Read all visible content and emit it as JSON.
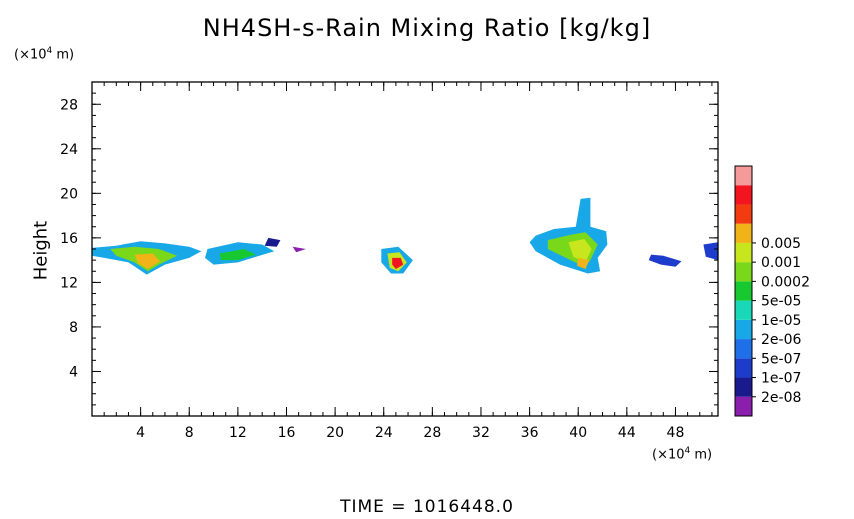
{
  "chart_data": {
    "type": "heatmap",
    "title": "NH4SH-s-Rain Mixing Ratio [kg/kg]",
    "ylabel": "Height",
    "x_unit": "(×10",
    "x_unit_exp": "4",
    "x_unit_tail": " m)",
    "y_unit": "(×10",
    "y_unit_exp": "4",
    "y_unit_tail": " m)",
    "xlim": [
      0,
      51.5
    ],
    "ylim": [
      0,
      30
    ],
    "x_ticks": [
      4,
      8,
      12,
      16,
      20,
      24,
      28,
      32,
      36,
      40,
      44,
      48
    ],
    "y_ticks": [
      4,
      8,
      12,
      16,
      20,
      24,
      28
    ],
    "x_minor_step": 1,
    "y_minor_step": 1,
    "time_label": "TIME = 1016448.0",
    "colorbar": {
      "colors": [
        "#8a1fae",
        "#1a1a8c",
        "#1e3ccc",
        "#1f6fe8",
        "#18a8e8",
        "#19d8b8",
        "#18c830",
        "#7ad81a",
        "#c8e61e",
        "#f0b418",
        "#f23c10",
        "#f2141e",
        "#f59a9a"
      ],
      "labels": [
        "2e-08",
        "1e-07",
        "5e-07",
        "2e-06",
        "1e-05",
        "5e-05",
        "0.0002",
        "0.001",
        "0.005"
      ]
    },
    "blobs": [
      {
        "points": [
          [
            0,
            15.1
          ],
          [
            2,
            15.3
          ],
          [
            4,
            15.7
          ],
          [
            6,
            15.5
          ],
          [
            8,
            15.2
          ],
          [
            9,
            14.8
          ],
          [
            8,
            14.2
          ],
          [
            6,
            13.6
          ],
          [
            4.5,
            12.7
          ],
          [
            3,
            13.8
          ],
          [
            1,
            14.2
          ],
          [
            0,
            14.4
          ]
        ],
        "level": 4
      },
      {
        "points": [
          [
            1.5,
            15.0
          ],
          [
            3.5,
            15.2
          ],
          [
            5.5,
            15.0
          ],
          [
            7,
            14.4
          ],
          [
            5.5,
            13.6
          ],
          [
            4.6,
            13.0
          ],
          [
            3.5,
            13.8
          ],
          [
            2,
            14.4
          ]
        ],
        "level": 7
      },
      {
        "points": [
          [
            3.5,
            14.5
          ],
          [
            5.0,
            14.6
          ],
          [
            5.6,
            13.9
          ],
          [
            4.6,
            13.2
          ],
          [
            3.8,
            13.7
          ]
        ],
        "level": 9
      },
      {
        "points": [
          [
            9.5,
            15.0
          ],
          [
            12,
            15.6
          ],
          [
            14,
            15.4
          ],
          [
            15,
            14.8
          ],
          [
            13.5,
            14.3
          ],
          [
            12,
            13.8
          ],
          [
            10,
            13.6
          ],
          [
            9.3,
            14.2
          ]
        ],
        "level": 4
      },
      {
        "points": [
          [
            10.5,
            14.6
          ],
          [
            12.5,
            15.0
          ],
          [
            13.5,
            14.5
          ],
          [
            12,
            14.0
          ],
          [
            10.6,
            14.0
          ]
        ],
        "level": 6
      },
      {
        "points": [
          [
            14.5,
            16.0
          ],
          [
            15.5,
            15.8
          ],
          [
            15.2,
            15.2
          ],
          [
            14.2,
            15.3
          ]
        ],
        "level": 1
      },
      {
        "points": [
          [
            16.5,
            15.2
          ],
          [
            17.6,
            15.0
          ],
          [
            16.8,
            14.7
          ]
        ],
        "level": 0
      },
      {
        "points": [
          [
            23.8,
            15.0
          ],
          [
            25.2,
            15.2
          ],
          [
            26.4,
            14.0
          ],
          [
            25.6,
            12.8
          ],
          [
            24.6,
            12.8
          ],
          [
            23.8,
            13.8
          ]
        ],
        "level": 4
      },
      {
        "points": [
          [
            24.3,
            14.6
          ],
          [
            25.3,
            14.7
          ],
          [
            25.9,
            13.8
          ],
          [
            25.2,
            13.0
          ],
          [
            24.5,
            13.3
          ]
        ],
        "level": 8
      },
      {
        "points": [
          [
            24.7,
            14.2
          ],
          [
            25.4,
            14.2
          ],
          [
            25.6,
            13.6
          ],
          [
            25.0,
            13.2
          ],
          [
            24.7,
            13.6
          ]
        ],
        "level": 11
      },
      {
        "points": [
          [
            36.5,
            16.2
          ],
          [
            38,
            16.8
          ],
          [
            39.8,
            17.0
          ],
          [
            40.2,
            19.5
          ],
          [
            41.0,
            19.6
          ],
          [
            41.0,
            17.0
          ],
          [
            42.3,
            16.6
          ],
          [
            42.4,
            15.4
          ],
          [
            41.6,
            14.2
          ],
          [
            41.8,
            13.0
          ],
          [
            40.8,
            12.8
          ],
          [
            38.5,
            13.6
          ],
          [
            36.5,
            14.8
          ],
          [
            36.0,
            15.6
          ]
        ],
        "level": 4
      },
      {
        "points": [
          [
            37.5,
            15.8
          ],
          [
            39.5,
            16.3
          ],
          [
            40.6,
            16.5
          ],
          [
            41.6,
            15.4
          ],
          [
            41.0,
            14.0
          ],
          [
            40.5,
            13.4
          ],
          [
            39,
            14.2
          ],
          [
            37.5,
            15.0
          ]
        ],
        "level": 7
      },
      {
        "points": [
          [
            39.2,
            15.6
          ],
          [
            40.5,
            15.9
          ],
          [
            41.1,
            15.0
          ],
          [
            40.6,
            13.8
          ],
          [
            39.6,
            14.3
          ]
        ],
        "level": 8
      },
      {
        "points": [
          [
            40.0,
            14.2
          ],
          [
            40.9,
            14.0
          ],
          [
            40.6,
            13.2
          ],
          [
            39.9,
            13.5
          ]
        ],
        "level": 9
      },
      {
        "points": [
          [
            46.0,
            14.5
          ],
          [
            47.0,
            14.4
          ],
          [
            48.5,
            13.9
          ],
          [
            48.0,
            13.4
          ],
          [
            46.8,
            13.6
          ],
          [
            45.8,
            14.0
          ]
        ],
        "level": 2
      },
      {
        "points": [
          [
            50.3,
            15.4
          ],
          [
            51.5,
            15.6
          ],
          [
            51.5,
            14.0
          ],
          [
            50.5,
            14.3
          ]
        ],
        "level": 2
      }
    ]
  }
}
